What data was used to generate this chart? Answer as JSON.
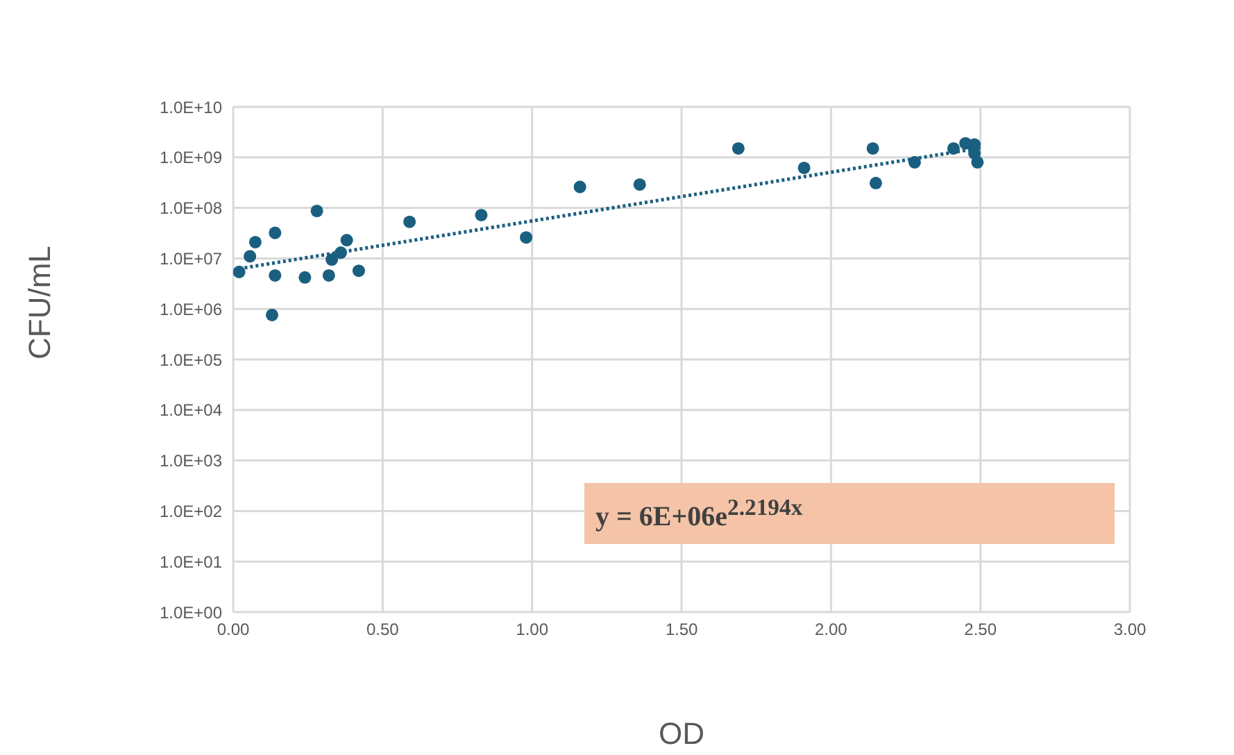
{
  "chart_data": {
    "type": "scatter",
    "xlabel": "OD",
    "ylabel": "CFU/mL",
    "xlim": [
      0,
      3
    ],
    "xticks": [
      {
        "value": 0,
        "label": "0.00"
      },
      {
        "value": 0.5,
        "label": "0.50"
      },
      {
        "value": 1,
        "label": "1.00"
      },
      {
        "value": 1.5,
        "label": "1.50"
      },
      {
        "value": 2,
        "label": "2.00"
      },
      {
        "value": 2.5,
        "label": "2.50"
      },
      {
        "value": 3,
        "label": "3.00"
      }
    ],
    "ylim": [
      1,
      10000000000
    ],
    "yticks": [
      {
        "value": 1,
        "label": "1.0E+00"
      },
      {
        "value": 10,
        "label": "1.0E+01"
      },
      {
        "value": 100,
        "label": "1.0E+02"
      },
      {
        "value": 1000,
        "label": "1.0E+03"
      },
      {
        "value": 10000,
        "label": "1.0E+04"
      },
      {
        "value": 100000,
        "label": "1.0E+05"
      },
      {
        "value": 1000000,
        "label": "1.0E+06"
      },
      {
        "value": 10000000,
        "label": "1.0E+07"
      },
      {
        "value": 100000000,
        "label": "1.0E+08"
      },
      {
        "value": 1000000000,
        "label": "1.0E+09"
      },
      {
        "value": 10000000000,
        "label": "1.0E+10"
      }
    ],
    "log": "y",
    "grid": true,
    "legend": false,
    "marker": "circle",
    "series": [
      {
        "color": "#1a5f80",
        "x": [
          0.02,
          0.056,
          0.074,
          0.14,
          0.14,
          0.13,
          0.28,
          0.24,
          0.32,
          0.33,
          0.36,
          0.38,
          0.42,
          0.59,
          0.83,
          0.98,
          1.16,
          1.36,
          1.69,
          1.91,
          2.14,
          2.15,
          2.28,
          2.41,
          2.45,
          2.49,
          2.48,
          2.48
        ],
        "values": [
          5400000,
          11000000,
          21000000,
          32000000,
          4600000,
          760000,
          87000000,
          4200000,
          4600000,
          9500000,
          13000000,
          23000000,
          5700000,
          53000000,
          72000000,
          26000000,
          260000000,
          290000000,
          1500000000,
          620000000,
          1500000000,
          310000000,
          800000000,
          1500000000,
          1900000000,
          800000000,
          1800000000,
          1200000000
        ]
      },
      {
        "type": "line",
        "color": "#1a5f80",
        "line_style": "dotted",
        "marker": "none",
        "x": [
          0.02,
          2.5
        ],
        "values": [
          6270000,
          1540000000
        ]
      }
    ],
    "annotations": [
      "y = 6E+06e$^{2.2194x}$"
    ]
  }
}
